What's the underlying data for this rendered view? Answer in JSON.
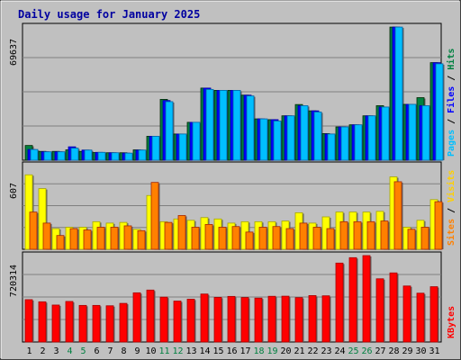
{
  "chart_data": {
    "type": "bar",
    "title": "Daily usage for January 2025",
    "days": [
      "1",
      "2",
      "3",
      "4",
      "5",
      "6",
      "7",
      "8",
      "9",
      "10",
      "11",
      "12",
      "13",
      "14",
      "15",
      "16",
      "17",
      "18",
      "19",
      "20",
      "21",
      "22",
      "23",
      "24",
      "25",
      "26",
      "27",
      "28",
      "29",
      "30",
      "31"
    ],
    "weekend_days": [
      "4",
      "5",
      "11",
      "12",
      "18",
      "19",
      "25",
      "26"
    ],
    "panels": [
      {
        "id": "hits",
        "ymax_label": "69637",
        "ymax": 69637,
        "legend": [
          "Pages",
          "Files",
          "Hits"
        ],
        "series": [
          {
            "name": "Hits",
            "color": "#008040",
            "values": [
              7700,
              4600,
              4600,
              5400,
              4600,
              4000,
              3900,
              3900,
              5400,
              12500,
              31800,
              13700,
              19800,
              37700,
              36500,
              36500,
              34000,
              21600,
              21200,
              23200,
              29100,
              25800,
              13900,
              17400,
              18500,
              23200,
              28500,
              69600,
              29200,
              32700,
              51000
            ]
          },
          {
            "name": "Files",
            "color": "#0000ff",
            "values": [
              5600,
              4400,
              4400,
              7000,
              5300,
              4100,
              3900,
              3700,
              5300,
              12500,
              31200,
              13700,
              19800,
              37700,
              36500,
              36500,
              34000,
              21600,
              21200,
              23200,
              28500,
              25800,
              13700,
              17400,
              18500,
              23200,
              27800,
              69600,
              29200,
              28500,
              51000
            ]
          },
          {
            "name": "Pages",
            "color": "#00bfff",
            "values": [
              5600,
              4400,
              4400,
              6300,
              5300,
              4100,
              3900,
              3700,
              5300,
              12500,
              30600,
              13700,
              19800,
              37000,
              36500,
              36500,
              33600,
              21600,
              20500,
              23200,
              28500,
              25200,
              13700,
              17400,
              18500,
              23200,
              27800,
              69600,
              29200,
              28500,
              50400
            ]
          }
        ]
      },
      {
        "id": "visits",
        "ymax_label": "607",
        "ymax": 607,
        "legend": [
          "Sites",
          "Visits"
        ],
        "series": [
          {
            "name": "Visits",
            "color": "#ffff00",
            "values": [
              540,
              440,
              150,
              160,
              160,
              200,
              190,
              195,
              145,
              390,
              200,
              220,
              210,
              230,
              220,
              190,
              200,
              200,
              200,
              205,
              265,
              190,
              235,
              270,
              270,
              270,
              275,
              525,
              160,
              210,
              360
            ]
          },
          {
            "name": "Sites",
            "color": "#ff8000",
            "values": [
              270,
              190,
              100,
              150,
              140,
              160,
              160,
              170,
              135,
              485,
              195,
              245,
              160,
              180,
              160,
              165,
              125,
              160,
              165,
              150,
              190,
              160,
              150,
              200,
              200,
              200,
              205,
              490,
              145,
              160,
              345
            ]
          }
        ]
      },
      {
        "id": "kbytes",
        "ymax_label": "720314",
        "ymax": 720314,
        "legend": [
          "KBytes"
        ],
        "series": [
          {
            "name": "KBytes",
            "color": "#ff0000",
            "values": [
              353000,
              335000,
              308000,
              338000,
              305000,
              305000,
              302000,
              322000,
              410000,
              433000,
              374000,
              341000,
              357000,
              400000,
              372000,
              380000,
              371000,
              366000,
              381000,
              382000,
              370000,
              387000,
              385000,
              658000,
              703000,
              720314,
              527000,
              576000,
              467000,
              407000,
              461000
            ]
          }
        ]
      }
    ]
  }
}
